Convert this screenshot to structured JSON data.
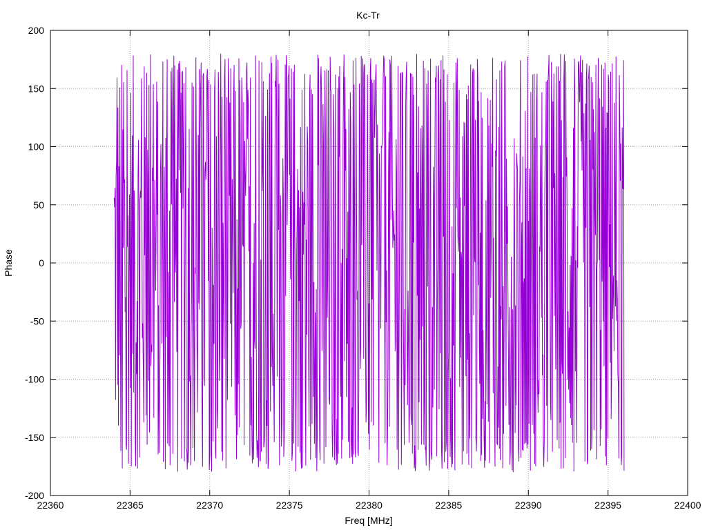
{
  "chart_data": {
    "type": "line",
    "title": "Kc-Tr",
    "xlabel": "Freq [MHz]",
    "ylabel": "Phase",
    "xlim": [
      22360,
      22400
    ],
    "ylim": [
      -200,
      200
    ],
    "x_ticks": [
      "22360",
      "22365",
      "22370",
      "22375",
      "22380",
      "22385",
      "22390",
      "22395",
      "22400"
    ],
    "y_ticks": [
      "-200",
      "-150",
      "-100",
      "-50",
      "0",
      "50",
      "100",
      "150",
      "200"
    ],
    "grid": true,
    "series": [
      {
        "color": "#9400d3",
        "x_range": [
          22364,
          22396
        ],
        "point_spacing": 0.03,
        "value_range": [
          -180,
          180
        ],
        "pattern": "phase wrapping rapidly between -180 and 180"
      }
    ]
  }
}
